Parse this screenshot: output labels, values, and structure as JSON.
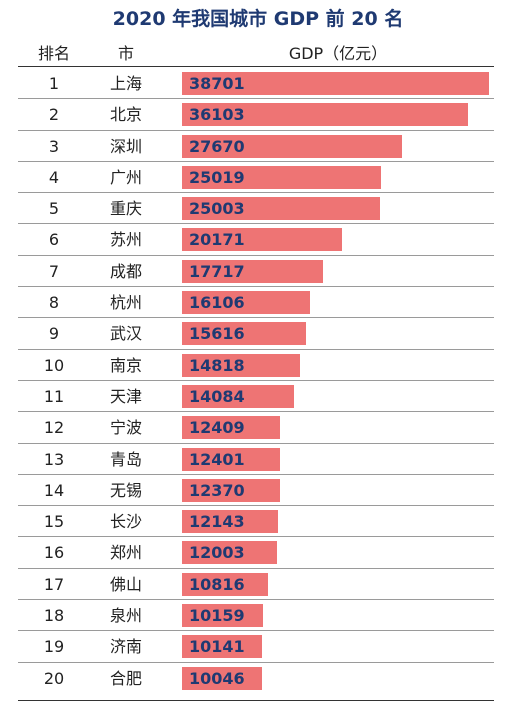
{
  "chart_data": {
    "type": "bar",
    "title": "2020 年我国城市 GDP 前 20 名",
    "headers": {
      "rank": "排名",
      "city": "市",
      "gdp": "GDP（亿元）"
    },
    "bar_color": "#ee7474",
    "value_label_color": "#1f3a72",
    "xlim": [
      0,
      38701
    ],
    "ranks": [
      "1",
      "2",
      "3",
      "4",
      "5",
      "6",
      "7",
      "8",
      "9",
      "10",
      "11",
      "12",
      "13",
      "14",
      "15",
      "16",
      "17",
      "18",
      "19",
      "20"
    ],
    "categories": [
      "上海",
      "北京",
      "深圳",
      "广州",
      "重庆",
      "苏州",
      "成都",
      "杭州",
      "武汉",
      "南京",
      "天津",
      "宁波",
      "青岛",
      "无锡",
      "长沙",
      "郑州",
      "佛山",
      "泉州",
      "济南",
      "合肥"
    ],
    "values": [
      38701,
      36103,
      27670,
      25019,
      25003,
      20171,
      17717,
      16106,
      15616,
      14818,
      14084,
      12409,
      12401,
      12370,
      12143,
      12003,
      10816,
      10159,
      10141,
      10046
    ]
  }
}
